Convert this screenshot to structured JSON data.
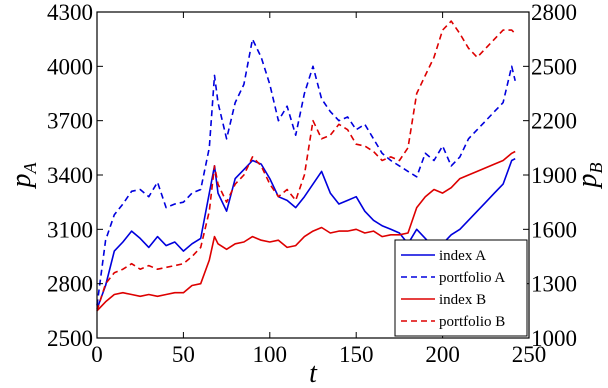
{
  "chart_data": {
    "type": "line",
    "xlabel": "t",
    "ylabel_left": {
      "main": "p",
      "sub": "A"
    },
    "ylabel_right": {
      "main": "p",
      "sub": "B"
    },
    "xlim": [
      0,
      250
    ],
    "ylim_left": [
      2500,
      4300
    ],
    "ylim_right": [
      1000,
      2800
    ],
    "x_ticks": [
      "0",
      "50",
      "100",
      "150",
      "200",
      "250"
    ],
    "y_ticks_left": [
      "2500",
      "2800",
      "3100",
      "3400",
      "3700",
      "4000",
      "4300"
    ],
    "y_ticks_right": [
      "1000",
      "1300",
      "1600",
      "1900",
      "2200",
      "2500",
      "2800"
    ],
    "grid": false,
    "legend_position": "bottom-right",
    "x": [
      0,
      5,
      10,
      15,
      20,
      25,
      30,
      35,
      40,
      45,
      50,
      55,
      60,
      65,
      68,
      70,
      75,
      80,
      85,
      90,
      95,
      100,
      105,
      110,
      115,
      120,
      125,
      130,
      135,
      140,
      145,
      150,
      155,
      160,
      165,
      170,
      175,
      180,
      185,
      190,
      195,
      200,
      205,
      210,
      215,
      220,
      225,
      230,
      235,
      240,
      242
    ],
    "series": [
      {
        "name": "index A",
        "axis": "left",
        "color": "#0000dd",
        "dash": false,
        "values": [
          2660,
          2790,
          2980,
          3030,
          3090,
          3050,
          3000,
          3060,
          3010,
          3030,
          2980,
          3020,
          3050,
          3300,
          3450,
          3300,
          3200,
          3380,
          3430,
          3480,
          3460,
          3380,
          3280,
          3260,
          3220,
          3280,
          3350,
          3420,
          3300,
          3240,
          3260,
          3280,
          3200,
          3150,
          3120,
          3100,
          3080,
          3020,
          3100,
          3050,
          3000,
          3020,
          3070,
          3100,
          3150,
          3200,
          3250,
          3300,
          3350,
          3480,
          3490
        ]
      },
      {
        "name": "portfolio A",
        "axis": "left",
        "color": "#0000dd",
        "dash": true,
        "values": [
          2680,
          3040,
          3180,
          3240,
          3310,
          3320,
          3280,
          3360,
          3220,
          3240,
          3250,
          3300,
          3320,
          3550,
          3950,
          3800,
          3600,
          3800,
          3900,
          4150,
          4050,
          3900,
          3700,
          3780,
          3620,
          3850,
          4000,
          3820,
          3750,
          3700,
          3720,
          3650,
          3680,
          3600,
          3520,
          3480,
          3450,
          3420,
          3390,
          3520,
          3480,
          3560,
          3450,
          3500,
          3600,
          3650,
          3700,
          3750,
          3800,
          4000,
          3920
        ]
      },
      {
        "name": "index B",
        "axis": "right",
        "color": "#dd0000",
        "dash": false,
        "values": [
          1150,
          1200,
          1240,
          1250,
          1240,
          1230,
          1240,
          1230,
          1240,
          1250,
          1250,
          1290,
          1300,
          1430,
          1560,
          1520,
          1490,
          1520,
          1530,
          1560,
          1540,
          1530,
          1540,
          1500,
          1510,
          1560,
          1590,
          1610,
          1580,
          1590,
          1590,
          1600,
          1580,
          1590,
          1560,
          1570,
          1570,
          1580,
          1720,
          1780,
          1820,
          1800,
          1830,
          1880,
          1900,
          1920,
          1940,
          1960,
          1980,
          2020,
          2030
        ]
      },
      {
        "name": "portfolio B",
        "axis": "right",
        "color": "#dd0000",
        "dash": true,
        "values": [
          1150,
          1300,
          1360,
          1380,
          1410,
          1380,
          1400,
          1380,
          1390,
          1400,
          1410,
          1450,
          1500,
          1700,
          1950,
          1850,
          1750,
          1850,
          1900,
          2000,
          1950,
          1850,
          1780,
          1820,
          1760,
          1900,
          2200,
          2100,
          2120,
          2180,
          2150,
          2070,
          2060,
          2030,
          1980,
          2000,
          1980,
          2050,
          2350,
          2450,
          2550,
          2700,
          2750,
          2680,
          2600,
          2550,
          2600,
          2650,
          2700,
          2700,
          2680
        ]
      }
    ]
  }
}
